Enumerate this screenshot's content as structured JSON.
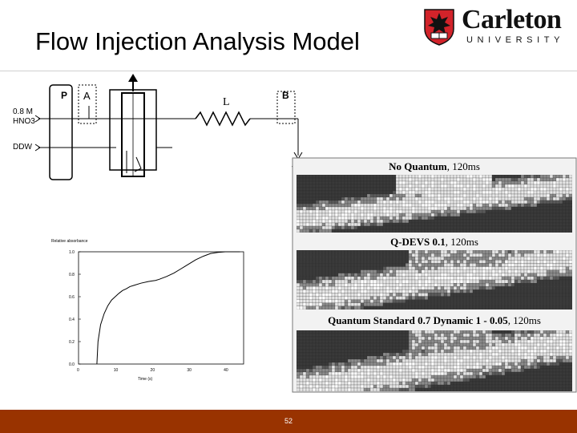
{
  "slide": {
    "title": "Flow Injection Analysis Model",
    "page_number": "52"
  },
  "logo": {
    "name": "Carleton",
    "sub": "UNIVERSITY",
    "icon": "carleton-shield-icon"
  },
  "diagram": {
    "label_p": "P",
    "label_a": "A",
    "label_l": "L",
    "label_b": "B",
    "label_w": "W",
    "inlet_1_line1": "0.8 M",
    "inlet_1_line2": "HNO3",
    "inlet_2": "DDW",
    "colors": {
      "line": "#000000"
    }
  },
  "response_chart": {
    "ylabel": "Relative absorbance",
    "xlabel": "Time (s)",
    "chart_data": {
      "type": "line",
      "x": [
        5,
        5.3,
        6,
        7,
        8,
        9,
        10,
        11,
        12,
        13,
        14,
        15,
        17,
        19,
        20,
        21,
        22,
        24,
        26,
        28,
        29,
        30,
        32,
        34,
        36,
        38,
        40,
        42,
        44
      ],
      "y": [
        0,
        0.2,
        0.35,
        0.45,
        0.52,
        0.57,
        0.6,
        0.63,
        0.655,
        0.67,
        0.69,
        0.7,
        0.72,
        0.735,
        0.74,
        0.745,
        0.755,
        0.78,
        0.81,
        0.85,
        0.87,
        0.89,
        0.93,
        0.96,
        0.985,
        0.995,
        1.0,
        1.0,
        1.0
      ],
      "xlim": [
        0,
        45
      ],
      "ylim": [
        0,
        1.0
      ],
      "xticks": [
        "0",
        "10",
        "20",
        "30",
        "40"
      ],
      "yticks": [
        "0.0",
        "0.2",
        "0.4",
        "0.6",
        "0.8",
        "1.0"
      ],
      "grid": false
    }
  },
  "panels": [
    {
      "title_bold": "No Quantum",
      "title_rest": ", 120ms"
    },
    {
      "title_bold": "Q-DEVS 0.1",
      "title_rest": ", 120ms"
    },
    {
      "title_bold": "Quantum Standard 0.7 Dynamic 1 - 0.05",
      "title_rest": ", 120ms"
    }
  ],
  "colors": {
    "footer": "#993300",
    "logo_red": "#d2232a",
    "panel_dark": "#3a3a3a",
    "panel_mid": "#8c8c8c",
    "panel_light": "#e6e6e6"
  }
}
